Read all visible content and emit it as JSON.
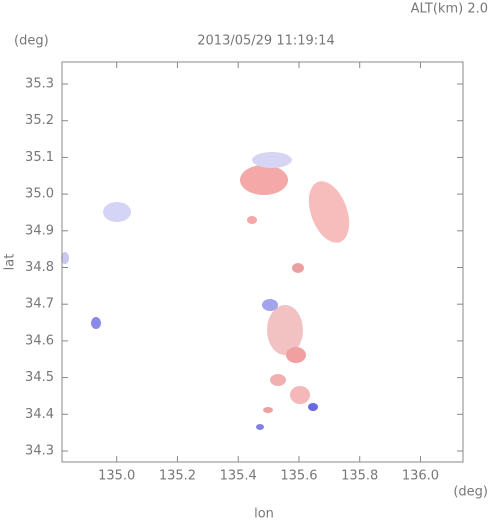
{
  "chart_data": {
    "type": "radar-map",
    "altitude_label": "ALT(km)  2.0",
    "title": "2013/05/29 11:19:14",
    "y_unit": "(deg)",
    "x_unit": "(deg)",
    "ylabel": "lat",
    "xlabel": "lon",
    "xlim": [
      134.82,
      136.14
    ],
    "ylim": [
      34.27,
      35.36
    ],
    "xticks": [
      {
        "value": 135,
        "label": "135.0"
      },
      135.2,
      135.4,
      135.6,
      135.8,
      {
        "value": 136,
        "label": "136.0"
      }
    ],
    "yticks": [
      34.3,
      34.4,
      34.5,
      34.6,
      34.7,
      34.8,
      34.9,
      {
        "value": 35,
        "label": "35.0"
      },
      35.1,
      35.2,
      35.3
    ]
  }
}
